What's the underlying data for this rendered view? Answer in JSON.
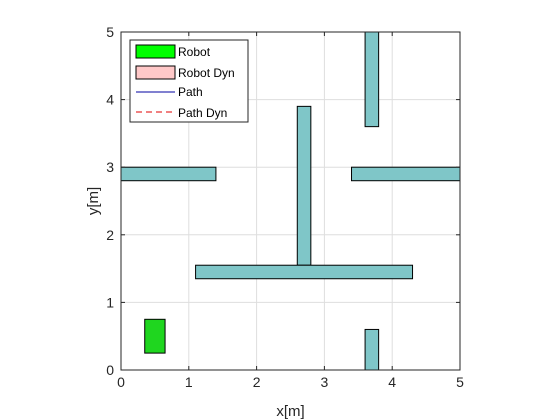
{
  "chart_data": {
    "type": "scatter",
    "title": "",
    "xlabel": "x[m]",
    "ylabel": "y[m]",
    "xlim": [
      0,
      5
    ],
    "ylim": [
      0,
      5
    ],
    "xticks": [
      "0",
      "1",
      "2",
      "3",
      "4",
      "5"
    ],
    "yticks": [
      "0",
      "1",
      "2",
      "3",
      "4",
      "5"
    ],
    "grid": true,
    "legend_position": "top-left",
    "colors": {
      "obstacle_fill": "#7fc6c8",
      "robot_fill": "#1fd61f",
      "robot_legend": "#00ff00",
      "robot_dyn": "#ffc8c8",
      "path": "#0000a0",
      "path_dyn": "#e00000",
      "grid": "#dedede"
    },
    "legend": [
      {
        "label": "Robot",
        "kind": "patch",
        "color": "#00ff00"
      },
      {
        "label": "Robot Dyn",
        "kind": "patch",
        "color": "#ffc8c8"
      },
      {
        "label": "Path",
        "kind": "line",
        "color": "#0000a0"
      },
      {
        "label": "Path Dyn",
        "kind": "dashed",
        "color": "#e00000"
      }
    ],
    "obstacles": [
      {
        "x0": 3.6,
        "x1": 3.8,
        "y0": 3.6,
        "y1": 5.0
      },
      {
        "x0": 2.6,
        "x1": 2.8,
        "y0": 1.55,
        "y1": 3.9
      },
      {
        "x0": 0.0,
        "x1": 1.4,
        "y0": 2.8,
        "y1": 3.0
      },
      {
        "x0": 3.4,
        "x1": 5.0,
        "y0": 2.8,
        "y1": 3.0
      },
      {
        "x0": 1.1,
        "x1": 4.3,
        "y0": 1.35,
        "y1": 1.55
      },
      {
        "x0": 3.6,
        "x1": 3.8,
        "y0": 0.0,
        "y1": 0.6
      }
    ],
    "robot": {
      "x0": 0.35,
      "x1": 0.65,
      "y0": 0.25,
      "y1": 0.75
    }
  }
}
